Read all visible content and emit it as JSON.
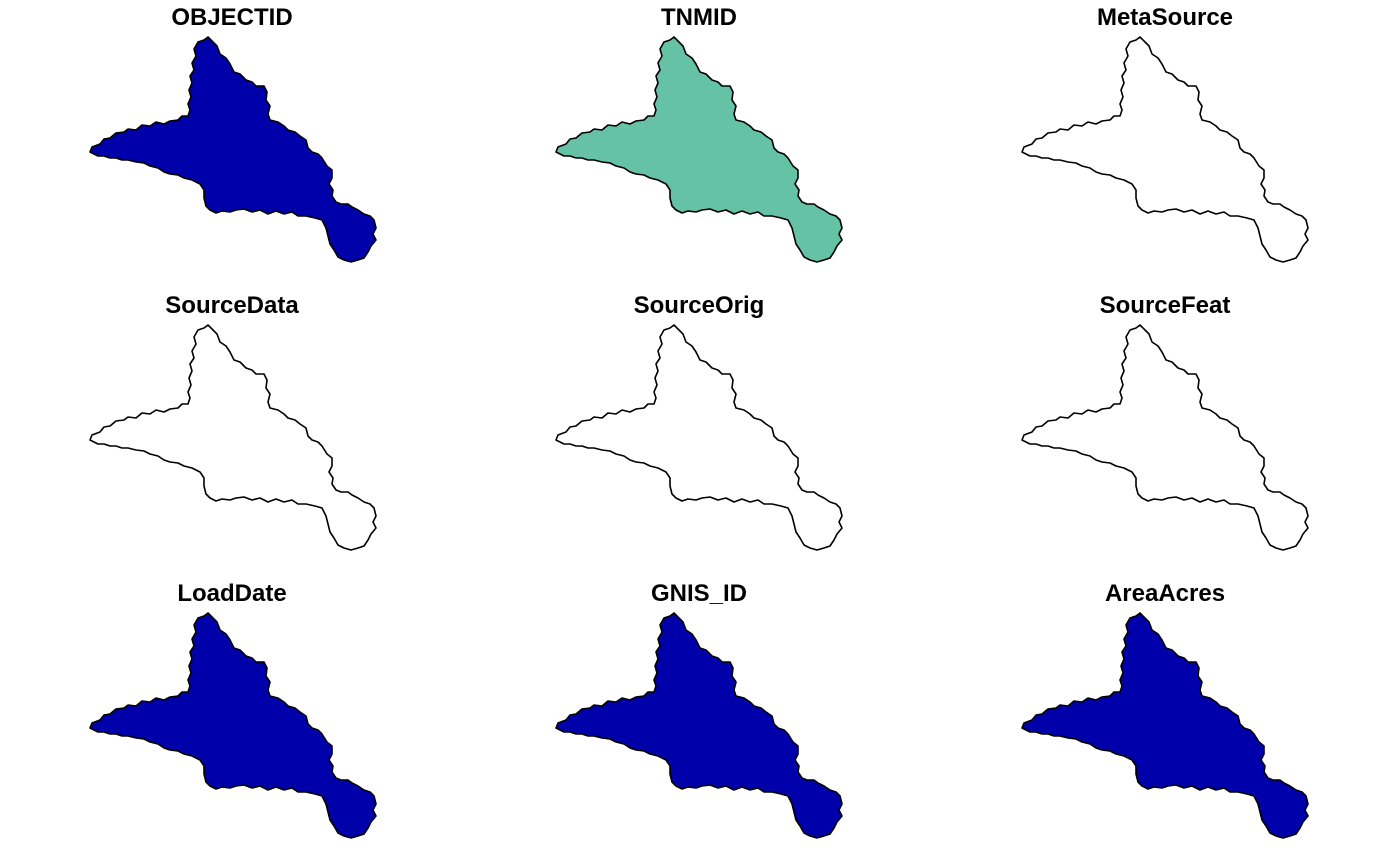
{
  "chart_data": {
    "type": "map",
    "layout": {
      "rows": 3,
      "cols": 3
    },
    "panels": [
      {
        "title": "OBJECTID",
        "fill": "#0000AA"
      },
      {
        "title": "TNMID",
        "fill": "#66C2A5"
      },
      {
        "title": "MetaSource",
        "fill": "none"
      },
      {
        "title": "SourceData",
        "fill": "none"
      },
      {
        "title": "SourceOrig",
        "fill": "none"
      },
      {
        "title": "SourceFeat",
        "fill": "none"
      },
      {
        "title": "LoadDate",
        "fill": "#0000AA"
      },
      {
        "title": "GNIS_ID",
        "fill": "#0000AA"
      },
      {
        "title": "AreaAcres",
        "fill": "#0000AA"
      }
    ],
    "outline_color": "#000000"
  }
}
